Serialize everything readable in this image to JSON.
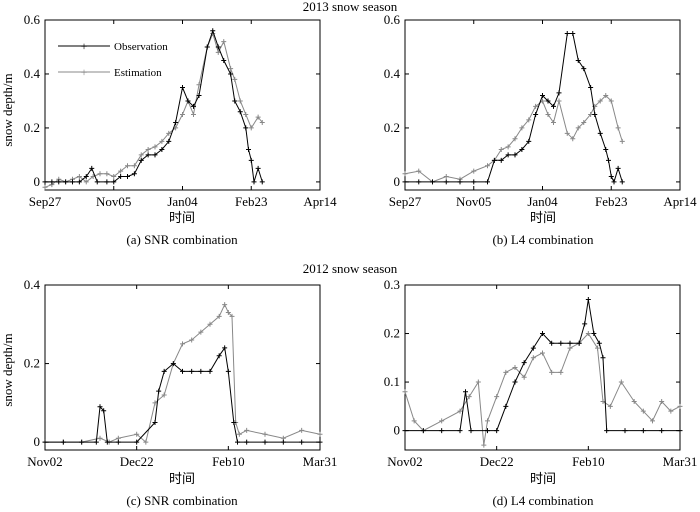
{
  "figure": {
    "section_titles": [
      "2013 snow season",
      "2012 snow season"
    ]
  },
  "chart_data": [
    {
      "type": "line",
      "caption": "(a) SNR combination",
      "xlabel": "时间",
      "ylabel": "snow depth/m",
      "x_ticks": [
        "Sep27",
        "Nov05",
        "Jan04",
        "Feb23",
        "Apr14"
      ],
      "y_ticks": [
        "0",
        "0.2",
        "0.4",
        "0.6"
      ],
      "ylim": [
        -0.03,
        0.6
      ],
      "xlim": [
        0,
        200
      ],
      "grid": false,
      "legend": "top-left",
      "series": [
        {
          "name": "Observation",
          "marker": "plus",
          "color": "#000000",
          "points": [
            [
              0,
              0
            ],
            [
              5,
              0
            ],
            [
              10,
              0
            ],
            [
              15,
              0
            ],
            [
              20,
              0
            ],
            [
              25,
              0
            ],
            [
              30,
              0.02
            ],
            [
              34,
              0.05
            ],
            [
              38,
              0
            ],
            [
              45,
              0
            ],
            [
              50,
              0
            ],
            [
              55,
              0.02
            ],
            [
              60,
              0.02
            ],
            [
              65,
              0.03
            ],
            [
              70,
              0.08
            ],
            [
              75,
              0.1
            ],
            [
              80,
              0.1
            ],
            [
              85,
              0.12
            ],
            [
              90,
              0.15
            ],
            [
              95,
              0.22
            ],
            [
              100,
              0.35
            ],
            [
              104,
              0.3
            ],
            [
              108,
              0.28
            ],
            [
              112,
              0.32
            ],
            [
              118,
              0.5
            ],
            [
              122,
              0.56
            ],
            [
              126,
              0.5
            ],
            [
              130,
              0.45
            ],
            [
              135,
              0.4
            ],
            [
              138,
              0.3
            ],
            [
              142,
              0.26
            ],
            [
              146,
              0.2
            ],
            [
              148,
              0.12
            ],
            [
              150,
              0.08
            ],
            [
              152,
              0
            ],
            [
              155,
              0.05
            ],
            [
              158,
              0
            ]
          ]
        },
        {
          "name": "Estimation",
          "marker": "plus",
          "color": "#888888",
          "points": [
            [
              0,
              -0.02
            ],
            [
              5,
              -0.01
            ],
            [
              10,
              0.01
            ],
            [
              15,
              0
            ],
            [
              20,
              0.01
            ],
            [
              25,
              0.02
            ],
            [
              30,
              0
            ],
            [
              35,
              0.02
            ],
            [
              40,
              0.03
            ],
            [
              45,
              0.03
            ],
            [
              50,
              0.02
            ],
            [
              55,
              0.04
            ],
            [
              60,
              0.06
            ],
            [
              65,
              0.06
            ],
            [
              70,
              0.1
            ],
            [
              75,
              0.12
            ],
            [
              80,
              0.13
            ],
            [
              85,
              0.15
            ],
            [
              90,
              0.18
            ],
            [
              95,
              0.2
            ],
            [
              100,
              0.25
            ],
            [
              104,
              0.3
            ],
            [
              108,
              0.25
            ],
            [
              112,
              0.36
            ],
            [
              118,
              0.5
            ],
            [
              122,
              0.55
            ],
            [
              126,
              0.48
            ],
            [
              130,
              0.52
            ],
            [
              135,
              0.42
            ],
            [
              138,
              0.38
            ],
            [
              142,
              0.3
            ],
            [
              146,
              0.25
            ],
            [
              150,
              0.2
            ],
            [
              155,
              0.24
            ],
            [
              158,
              0.22
            ]
          ]
        }
      ]
    },
    {
      "type": "line",
      "caption": "(b) L4 combination",
      "xlabel": "时间",
      "ylabel": "",
      "x_ticks": [
        "Sep27",
        "Nov05",
        "Jan04",
        "Feb23",
        "Apr14"
      ],
      "y_ticks": [
        "0",
        "0.2",
        "0.4",
        "0.6"
      ],
      "ylim": [
        -0.03,
        0.6
      ],
      "xlim": [
        0,
        200
      ],
      "grid": false,
      "legend": "none",
      "series": [
        {
          "name": "Observation",
          "marker": "plus",
          "color": "#000000",
          "points": [
            [
              0,
              0
            ],
            [
              10,
              0
            ],
            [
              20,
              0
            ],
            [
              30,
              0
            ],
            [
              40,
              0
            ],
            [
              50,
              0
            ],
            [
              60,
              0
            ],
            [
              65,
              0.08
            ],
            [
              70,
              0.08
            ],
            [
              75,
              0.1
            ],
            [
              80,
              0.1
            ],
            [
              85,
              0.12
            ],
            [
              90,
              0.15
            ],
            [
              95,
              0.25
            ],
            [
              100,
              0.32
            ],
            [
              104,
              0.3
            ],
            [
              108,
              0.28
            ],
            [
              112,
              0.33
            ],
            [
              118,
              0.55
            ],
            [
              122,
              0.55
            ],
            [
              126,
              0.45
            ],
            [
              130,
              0.42
            ],
            [
              135,
              0.35
            ],
            [
              138,
              0.25
            ],
            [
              142,
              0.18
            ],
            [
              146,
              0.12
            ],
            [
              148,
              0.08
            ],
            [
              150,
              0.02
            ],
            [
              152,
              0
            ],
            [
              155,
              0.05
            ],
            [
              158,
              0
            ]
          ]
        },
        {
          "name": "Estimation",
          "marker": "plus",
          "color": "#888888",
          "points": [
            [
              0,
              0.03
            ],
            [
              10,
              0.04
            ],
            [
              20,
              0
            ],
            [
              30,
              0.02
            ],
            [
              40,
              0.01
            ],
            [
              50,
              0.04
            ],
            [
              60,
              0.06
            ],
            [
              65,
              0.08
            ],
            [
              70,
              0.12
            ],
            [
              75,
              0.13
            ],
            [
              80,
              0.16
            ],
            [
              85,
              0.2
            ],
            [
              90,
              0.23
            ],
            [
              95,
              0.28
            ],
            [
              100,
              0.3
            ],
            [
              104,
              0.25
            ],
            [
              108,
              0.22
            ],
            [
              112,
              0.3
            ],
            [
              118,
              0.18
            ],
            [
              122,
              0.16
            ],
            [
              126,
              0.2
            ],
            [
              130,
              0.22
            ],
            [
              135,
              0.25
            ],
            [
              138,
              0.28
            ],
            [
              142,
              0.3
            ],
            [
              146,
              0.32
            ],
            [
              150,
              0.3
            ],
            [
              155,
              0.2
            ],
            [
              158,
              0.15
            ]
          ]
        }
      ]
    },
    {
      "type": "line",
      "caption": "(c) SNR combination",
      "xlabel": "时间",
      "ylabel": "snow depth/m",
      "x_ticks": [
        "Nov02",
        "Dec22",
        "Feb10",
        "Mar31"
      ],
      "y_ticks": [
        "0",
        "0.2",
        "0.4"
      ],
      "ylim": [
        -0.02,
        0.4
      ],
      "xlim": [
        0,
        150
      ],
      "grid": false,
      "legend": "none",
      "series": [
        {
          "name": "Observation",
          "marker": "plus",
          "color": "#000000",
          "points": [
            [
              0,
              0
            ],
            [
              10,
              0
            ],
            [
              20,
              0
            ],
            [
              28,
              0
            ],
            [
              30,
              0.09
            ],
            [
              32,
              0.08
            ],
            [
              34,
              0
            ],
            [
              40,
              0
            ],
            [
              50,
              0
            ],
            [
              60,
              0.05
            ],
            [
              62,
              0.13
            ],
            [
              65,
              0.18
            ],
            [
              70,
              0.2
            ],
            [
              75,
              0.18
            ],
            [
              80,
              0.18
            ],
            [
              85,
              0.18
            ],
            [
              90,
              0.18
            ],
            [
              95,
              0.22
            ],
            [
              98,
              0.24
            ],
            [
              100,
              0.18
            ],
            [
              103,
              0.05
            ],
            [
              105,
              0
            ],
            [
              110,
              0
            ],
            [
              120,
              0
            ],
            [
              130,
              0
            ],
            [
              140,
              0
            ],
            [
              150,
              0
            ]
          ]
        },
        {
          "name": "Estimation",
          "marker": "plus",
          "color": "#888888",
          "points": [
            [
              0,
              0
            ],
            [
              10,
              0
            ],
            [
              20,
              0
            ],
            [
              30,
              0.01
            ],
            [
              35,
              0
            ],
            [
              40,
              0.01
            ],
            [
              50,
              0.02
            ],
            [
              55,
              0
            ],
            [
              60,
              0.1
            ],
            [
              65,
              0.12
            ],
            [
              70,
              0.2
            ],
            [
              75,
              0.25
            ],
            [
              80,
              0.26
            ],
            [
              85,
              0.28
            ],
            [
              90,
              0.3
            ],
            [
              95,
              0.32
            ],
            [
              98,
              0.35
            ],
            [
              100,
              0.33
            ],
            [
              102,
              0.32
            ],
            [
              104,
              0.05
            ],
            [
              106,
              0.02
            ],
            [
              110,
              0.03
            ],
            [
              120,
              0.02
            ],
            [
              130,
              0.01
            ],
            [
              140,
              0.03
            ],
            [
              150,
              0.02
            ]
          ]
        }
      ]
    },
    {
      "type": "line",
      "caption": "(d) L4 combination",
      "xlabel": "时间",
      "ylabel": "",
      "x_ticks": [
        "Nov02",
        "Dec22",
        "Feb10",
        "Mar31"
      ],
      "y_ticks": [
        "0",
        "0.1",
        "0.2",
        "0.3"
      ],
      "ylim": [
        -0.04,
        0.3
      ],
      "xlim": [
        0,
        150
      ],
      "grid": false,
      "legend": "none",
      "series": [
        {
          "name": "Observation",
          "marker": "plus",
          "color": "#000000",
          "points": [
            [
              0,
              0
            ],
            [
              10,
              0
            ],
            [
              20,
              0
            ],
            [
              30,
              0
            ],
            [
              33,
              0.08
            ],
            [
              36,
              0
            ],
            [
              45,
              0
            ],
            [
              50,
              0
            ],
            [
              55,
              0.05
            ],
            [
              60,
              0.1
            ],
            [
              65,
              0.14
            ],
            [
              70,
              0.17
            ],
            [
              75,
              0.2
            ],
            [
              80,
              0.18
            ],
            [
              85,
              0.18
            ],
            [
              90,
              0.18
            ],
            [
              95,
              0.18
            ],
            [
              98,
              0.22
            ],
            [
              100,
              0.27
            ],
            [
              103,
              0.2
            ],
            [
              106,
              0.18
            ],
            [
              108,
              0.15
            ],
            [
              110,
              0
            ],
            [
              120,
              0
            ],
            [
              130,
              0
            ],
            [
              140,
              0
            ],
            [
              150,
              0
            ]
          ]
        },
        {
          "name": "Estimation",
          "marker": "plus",
          "color": "#888888",
          "points": [
            [
              0,
              0.08
            ],
            [
              5,
              0.02
            ],
            [
              10,
              0
            ],
            [
              20,
              0.02
            ],
            [
              30,
              0.04
            ],
            [
              35,
              0.07
            ],
            [
              40,
              0.1
            ],
            [
              43,
              -0.03
            ],
            [
              45,
              0.02
            ],
            [
              50,
              0.07
            ],
            [
              55,
              0.12
            ],
            [
              60,
              0.13
            ],
            [
              65,
              0.11
            ],
            [
              70,
              0.15
            ],
            [
              75,
              0.16
            ],
            [
              80,
              0.12
            ],
            [
              85,
              0.12
            ],
            [
              90,
              0.17
            ],
            [
              95,
              0.18
            ],
            [
              100,
              0.2
            ],
            [
              105,
              0.17
            ],
            [
              108,
              0.06
            ],
            [
              112,
              0.05
            ],
            [
              118,
              0.1
            ],
            [
              125,
              0.06
            ],
            [
              130,
              0.04
            ],
            [
              135,
              0.02
            ],
            [
              140,
              0.06
            ],
            [
              145,
              0.04
            ],
            [
              150,
              0.05
            ]
          ]
        }
      ]
    }
  ]
}
